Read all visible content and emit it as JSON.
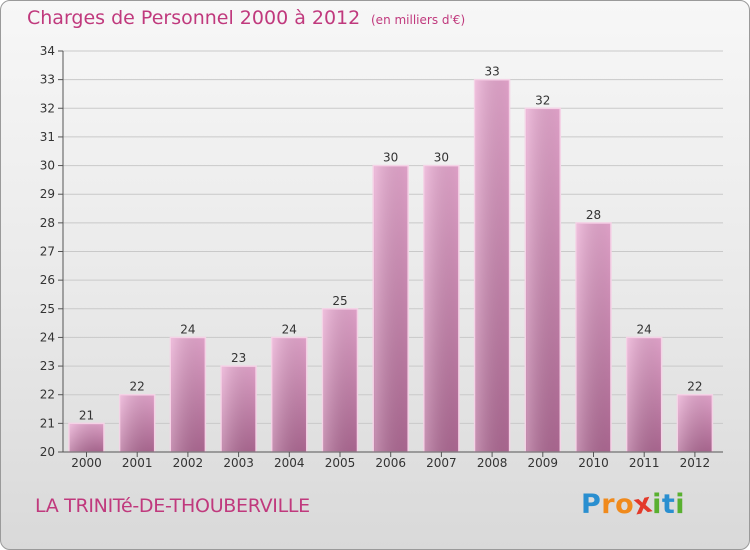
{
  "header": {
    "title": "Charges de Personnel 2000 à 2012",
    "subtitle": "(en milliers d'€)"
  },
  "footer": {
    "town": "LA TRINITé-DE-THOUBERVILLE",
    "logo_letters": [
      "P",
      "r",
      "o",
      "x",
      "i",
      "t",
      "i"
    ],
    "logo_colors": [
      "#2a8fd0",
      "#f08a1c",
      "#f08a1c",
      "#e33a2a",
      "#59b030",
      "#2a8fd0",
      "#59b030"
    ]
  },
  "chart_data": {
    "type": "bar",
    "categories": [
      "2000",
      "2001",
      "2002",
      "2003",
      "2004",
      "2005",
      "2006",
      "2007",
      "2008",
      "2009",
      "2010",
      "2011",
      "2012"
    ],
    "values": [
      21,
      22,
      24,
      23,
      24,
      25,
      30,
      30,
      33,
      32,
      28,
      24,
      22
    ],
    "data_labels": [
      "21",
      "22",
      "24",
      "23",
      "24",
      "25",
      "30",
      "30",
      "33",
      "32",
      "28",
      "24",
      "22"
    ],
    "yticks": [
      "20",
      "21",
      "22",
      "23",
      "24",
      "25",
      "26",
      "27",
      "28",
      "29",
      "30",
      "31",
      "32",
      "33",
      "34"
    ],
    "ylim": [
      20,
      34
    ],
    "grid": true,
    "bar_color": "#d98cb8",
    "title": "Charges de Personnel 2000 à 2012",
    "xlabel": "",
    "ylabel": ""
  }
}
